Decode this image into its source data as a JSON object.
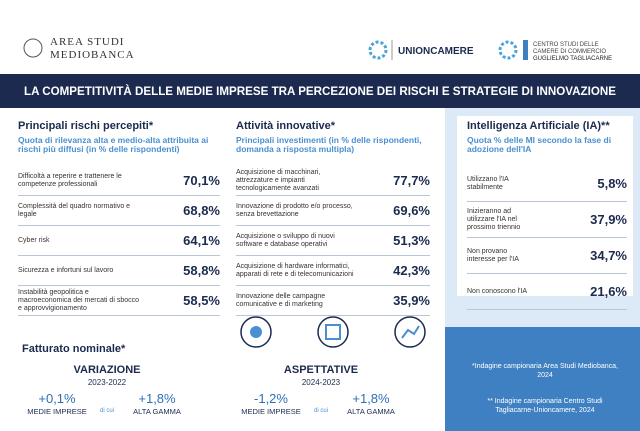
{
  "header": {
    "left_logo": [
      "AREA STUDI",
      "MEDIOBANCA"
    ],
    "center_logo": "UNIONCAMERE",
    "right_logo": [
      "CENTRO STUDI DELLE",
      "CAMERE DI COMMERCIO",
      "GUGLIELMO TAGLIACARNE"
    ]
  },
  "banner": {
    "title": "LA COMPETITIVITÀ DELLE MEDIE IMPRESE TRA PERCEZIONE DEI RISCHI E STRATEGIE DI INNOVAZIONE"
  },
  "columns": [
    {
      "title": "Principali rischi percepiti*",
      "subtitle": "Quota di rilevanza alta e medio-alta attribuita ai rischi più diffusi (in % delle rispondenti)",
      "items": [
        {
          "label": "Difficoltà a reperire e trattenere le competenze professionali",
          "value": "70,1%"
        },
        {
          "label": "Complessità del quadro normativo e legale",
          "value": "68,8%"
        },
        {
          "label": "Cyber risk",
          "value": "64,1%"
        },
        {
          "label": "Sicurezza e infortuni sul lavoro",
          "value": "58,8%"
        },
        {
          "label": "Instabilità geopolitica e macroeconomica dei mercati di sbocco e approvvigionamento",
          "value": "58,5%"
        }
      ]
    },
    {
      "title": "Attività innovative*",
      "subtitle": "Principali investimenti (in % delle rispondenti, domanda a risposta multipla)",
      "items": [
        {
          "label": "Acquisizione di macchinari, attrezzature e impianti tecnologicamente avanzati",
          "value": "77,7%"
        },
        {
          "label": "Innovazione di prodotto e/o processo, senza brevettazione",
          "value": "69,6%"
        },
        {
          "label": "Acquisizione o sviluppo di nuovi software e database operativi",
          "value": "51,3%"
        },
        {
          "label": "Acquisizione di hardware informatici, apparati di rete e di telecomunicazioni",
          "value": "42,3%"
        },
        {
          "label": "Innovazione delle campagne comunicative e di marketing",
          "value": "35,9%"
        }
      ]
    },
    {
      "title": "Intelligenza Artificiale (IA)**",
      "subtitle": "Quota % delle MI secondo la fase di adozione dell'IA",
      "items": [
        {
          "label": "Utilizzano l'IA stabilmente",
          "value": "5,8%"
        },
        {
          "label": "Inizieranno ad utilizzare l'IA nel prossimo triennio",
          "value": "37,9%"
        },
        {
          "label": "Non provano interesse per l'IA",
          "value": "34,7%"
        },
        {
          "label": "Non conoscono l'IA",
          "value": "21,6%"
        }
      ]
    }
  ],
  "revenue": {
    "title": "Fatturato nominale*",
    "blocks": [
      {
        "title": "VARIAZIONE",
        "period": "2023-2022",
        "left": {
          "value": "+0,1%",
          "label": "MEDIE IMPRESE"
        },
        "connector": "di cui",
        "right": {
          "value": "+1,8%",
          "label": "ALTA GAMMA"
        }
      },
      {
        "title": "ASPETTATIVE",
        "period": "2024-2023",
        "left": {
          "value": "-1,2%",
          "label": "MEDIE IMPRESE"
        },
        "connector": "di cui",
        "right": {
          "value": "+1,8%",
          "label": "ALTA GAMMA"
        }
      }
    ]
  },
  "notes": [
    "*Indagine campionaria Area Studi Mediobanca, 2024",
    "** Indagine campionaria Centro Studi Tagliacarne-Unioncamere, 2024"
  ]
}
